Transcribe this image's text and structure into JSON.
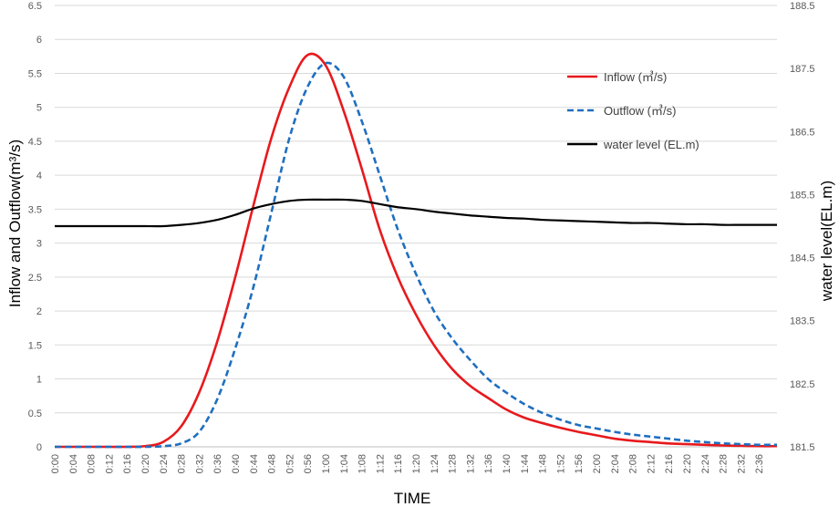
{
  "chart_data": {
    "type": "line",
    "xlabel": "TIME",
    "ylabel_left": "Inflow and Outflow(m³/s)",
    "ylabel_right": "water level(EL.m)",
    "y_left_lim": [
      0,
      6.5
    ],
    "y_left_ticks": [
      "0",
      "0.5",
      "1",
      "1.5",
      "2",
      "2.5",
      "3",
      "3.5",
      "4",
      "4.5",
      "5",
      "5.5",
      "6",
      "6.5"
    ],
    "y_right_lim": [
      181.5,
      188.5
    ],
    "y_right_ticks": [
      "181.5",
      "182.5",
      "183.5",
      "184.5",
      "185.5",
      "186.5",
      "187.5",
      "188.5"
    ],
    "grid": true,
    "legend_position": "top-right",
    "x": [
      "0:00",
      "0:04",
      "0:08",
      "0:12",
      "0:16",
      "0:20",
      "0:24",
      "0:28",
      "0:32",
      "0:36",
      "0:40",
      "0:44",
      "0:48",
      "0:52",
      "0:56",
      "1:00",
      "1:04",
      "1:08",
      "1:12",
      "1:16",
      "1:20",
      "1:24",
      "1:28",
      "1:32",
      "1:36",
      "1:40",
      "1:44",
      "1:48",
      "1:52",
      "1:56",
      "2:00",
      "2:04",
      "2:08",
      "2:12",
      "2:16",
      "2:20",
      "2:24",
      "2:28",
      "2:32",
      "2:36",
      "2:38"
    ],
    "x_tick_labels": [
      "0:00",
      "0:04",
      "0:08",
      "0:12",
      "0:16",
      "0:20",
      "0:24",
      "0:28",
      "0:32",
      "0:36",
      "0:40",
      "0:44",
      "0:48",
      "0:52",
      "0:56",
      "1:00",
      "1:04",
      "1:08",
      "1:12",
      "1:16",
      "1:20",
      "1:24",
      "1:28",
      "1:32",
      "1:36",
      "1:40",
      "1:44",
      "1:48",
      "1:52",
      "1:56",
      "2:00",
      "2:04",
      "2:08",
      "2:12",
      "2:16",
      "2:20",
      "2:24",
      "2:28",
      "2:32",
      "2:36"
    ],
    "series": [
      {
        "name": "Inflow (㎥/s)",
        "axis": "left",
        "color": "#e8191d",
        "dash": "solid",
        "values": [
          0,
          0,
          0,
          0,
          0,
          0.01,
          0.07,
          0.3,
          0.8,
          1.55,
          2.5,
          3.55,
          4.55,
          5.3,
          5.77,
          5.62,
          4.95,
          4.1,
          3.2,
          2.5,
          1.95,
          1.5,
          1.15,
          0.9,
          0.72,
          0.55,
          0.43,
          0.35,
          0.28,
          0.22,
          0.17,
          0.12,
          0.09,
          0.07,
          0.05,
          0.04,
          0.03,
          0.02,
          0.015,
          0.01,
          0.01
        ]
      },
      {
        "name": "Outflow (㎥/s)",
        "axis": "left",
        "color": "#1f6fc0",
        "dash": "dashed",
        "values": [
          0,
          0,
          0,
          0,
          0,
          0,
          0.01,
          0.05,
          0.22,
          0.7,
          1.45,
          2.35,
          3.45,
          4.55,
          5.3,
          5.65,
          5.45,
          4.8,
          4.0,
          3.2,
          2.55,
          2.0,
          1.6,
          1.28,
          1.0,
          0.8,
          0.63,
          0.5,
          0.4,
          0.32,
          0.27,
          0.22,
          0.18,
          0.15,
          0.12,
          0.09,
          0.07,
          0.05,
          0.04,
          0.03,
          0.03
        ]
      },
      {
        "name": "water level (EL.m)",
        "axis": "right",
        "color": "#000000",
        "dash": "solid",
        "values": [
          185.0,
          185.0,
          185.0,
          185.0,
          185.0,
          185.0,
          185.0,
          185.02,
          185.05,
          185.1,
          185.18,
          185.28,
          185.35,
          185.4,
          185.42,
          185.42,
          185.42,
          185.4,
          185.35,
          185.3,
          185.27,
          185.23,
          185.2,
          185.17,
          185.15,
          185.13,
          185.12,
          185.1,
          185.09,
          185.08,
          185.07,
          185.06,
          185.05,
          185.05,
          185.04,
          185.03,
          185.03,
          185.02,
          185.02,
          185.02,
          185.02
        ]
      }
    ]
  }
}
